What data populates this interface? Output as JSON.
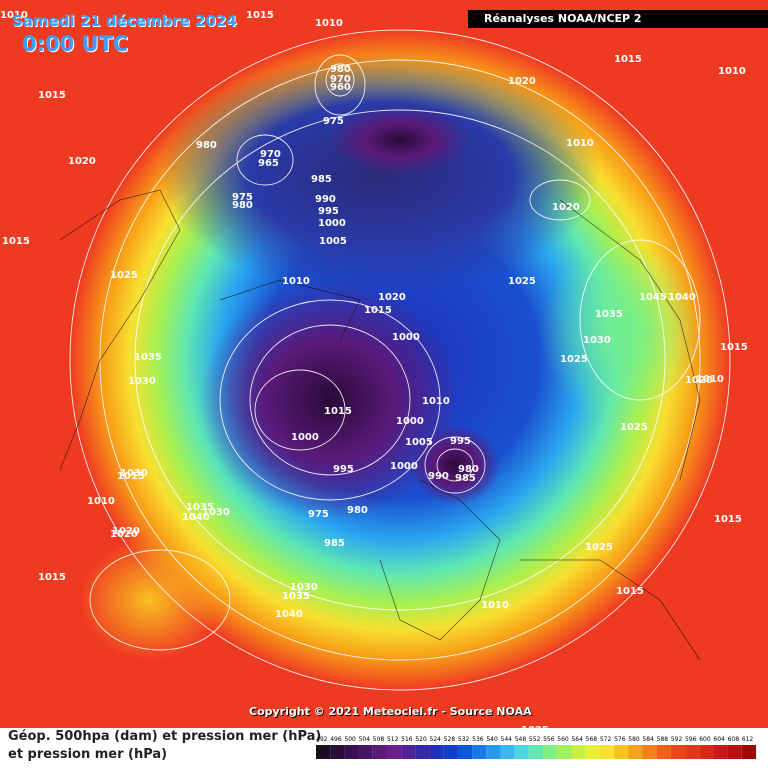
{
  "header": {
    "date": "Samedi 21 décembre 2024",
    "time": "0:00 UTC",
    "source": "Réanalyses NOAA/NCEP 2"
  },
  "copyright": "Copyright © 2021 Meteociel.fr - Source NOAA",
  "legend": {
    "line1": "Géop. 500hpa (dam) et pression mer (hPa)",
    "line2": "et pression mer (hPa)",
    "scale_labels": [
      "492",
      "496",
      "500",
      "504",
      "508",
      "512",
      "516",
      "520",
      "524",
      "528",
      "532",
      "536",
      "540",
      "544",
      "548",
      "552",
      "556",
      "560",
      "564",
      "568",
      "572",
      "576",
      "580",
      "584",
      "588",
      "592",
      "596",
      "600",
      "604",
      "608",
      "612"
    ],
    "scale_colors": [
      "#1a0a20",
      "#2b0d3a",
      "#3a1050",
      "#4a1465",
      "#5a1a7a",
      "#6a1f8c",
      "#52229a",
      "#3828a8",
      "#2030b8",
      "#1040c8",
      "#0a58d8",
      "#1878e8",
      "#2a98f0",
      "#3ab8f0",
      "#4ad8e0",
      "#60e8b0",
      "#80f080",
      "#a0f060",
      "#c8f040",
      "#e8f030",
      "#f8e030",
      "#f8c020",
      "#f8a018",
      "#f88018",
      "#f06018",
      "#e84818",
      "#e03818",
      "#d82818",
      "#c81818",
      "#b81010",
      "#a00808"
    ]
  },
  "isobar_labels": [
    "1010",
    "1015",
    "1010",
    "1020",
    "1015",
    "1010",
    "1015",
    "1020",
    "980",
    "970",
    "965",
    "975",
    "980",
    "980",
    "970",
    "960",
    "975",
    "985",
    "990",
    "995",
    "1000",
    "1005",
    "1020",
    "1010",
    "1020",
    "1025",
    "1015",
    "1025",
    "1010",
    "1015",
    "1020",
    "1000",
    "1035",
    "1045",
    "1040",
    "1035",
    "1030",
    "1030",
    "1025",
    "1015",
    "1010",
    "1020",
    "1000",
    "1005",
    "1000",
    "1010",
    "1025",
    "1015",
    "995",
    "990",
    "980",
    "1000",
    "995",
    "985",
    "975",
    "980",
    "985",
    "1020",
    "1030",
    "1035",
    "1040",
    "1015",
    "1010",
    "1020",
    "1015",
    "1025",
    "1030",
    "1035",
    "1040",
    "1025",
    "1015",
    "1030",
    "1015",
    "1010"
  ]
}
